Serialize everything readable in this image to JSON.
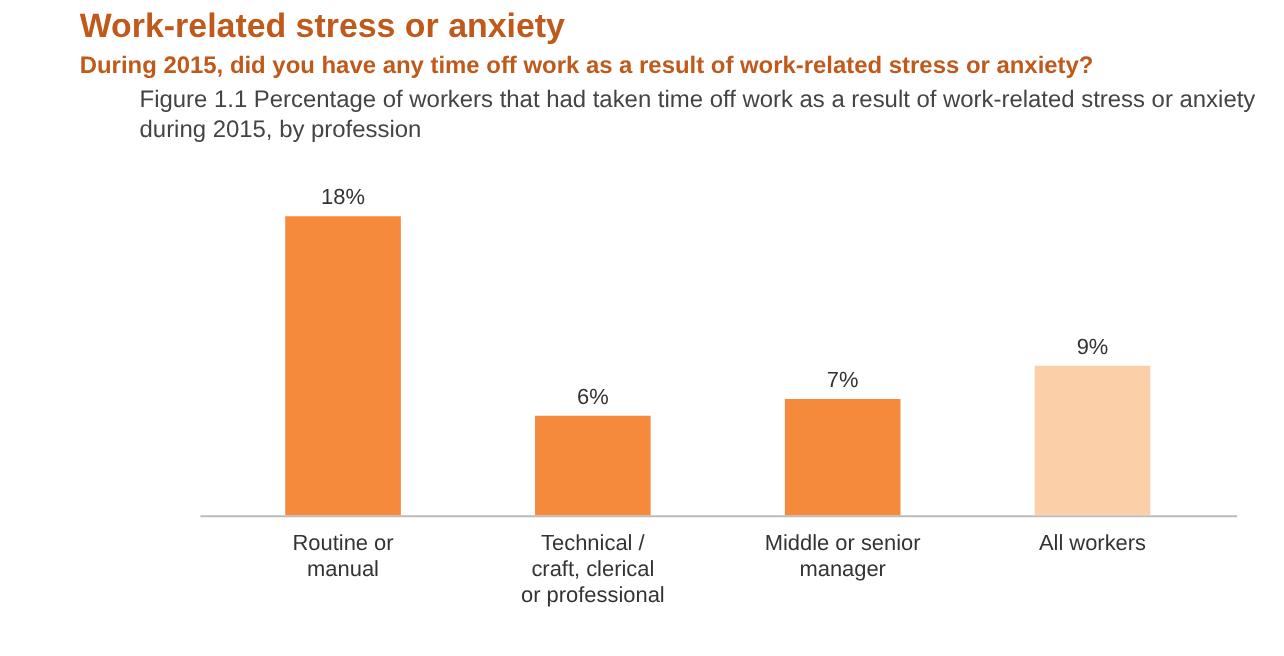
{
  "chart_data": {
    "type": "bar",
    "title": "Work-related stress or anxiety",
    "subtitle": "During 2015, did you have any time off work as a result of work-related stress or anxiety?",
    "annotations": [
      "Figure 1.1  Percentage of workers that had taken time off work as a result of work-related stress or anxiety during 2015, by profession"
    ],
    "categories": [
      "Routine or manual",
      "Technical / craft, clerical or professional",
      "Middle or senior manager",
      "All workers"
    ],
    "values": [
      18,
      6,
      7,
      9
    ],
    "colors": [
      "#f68a3c",
      "#f68a3c",
      "#f68a3c",
      "#fbd0a9"
    ],
    "value_labels": [
      "18%",
      "6%",
      "7%",
      "9%"
    ],
    "grid": false
  }
}
